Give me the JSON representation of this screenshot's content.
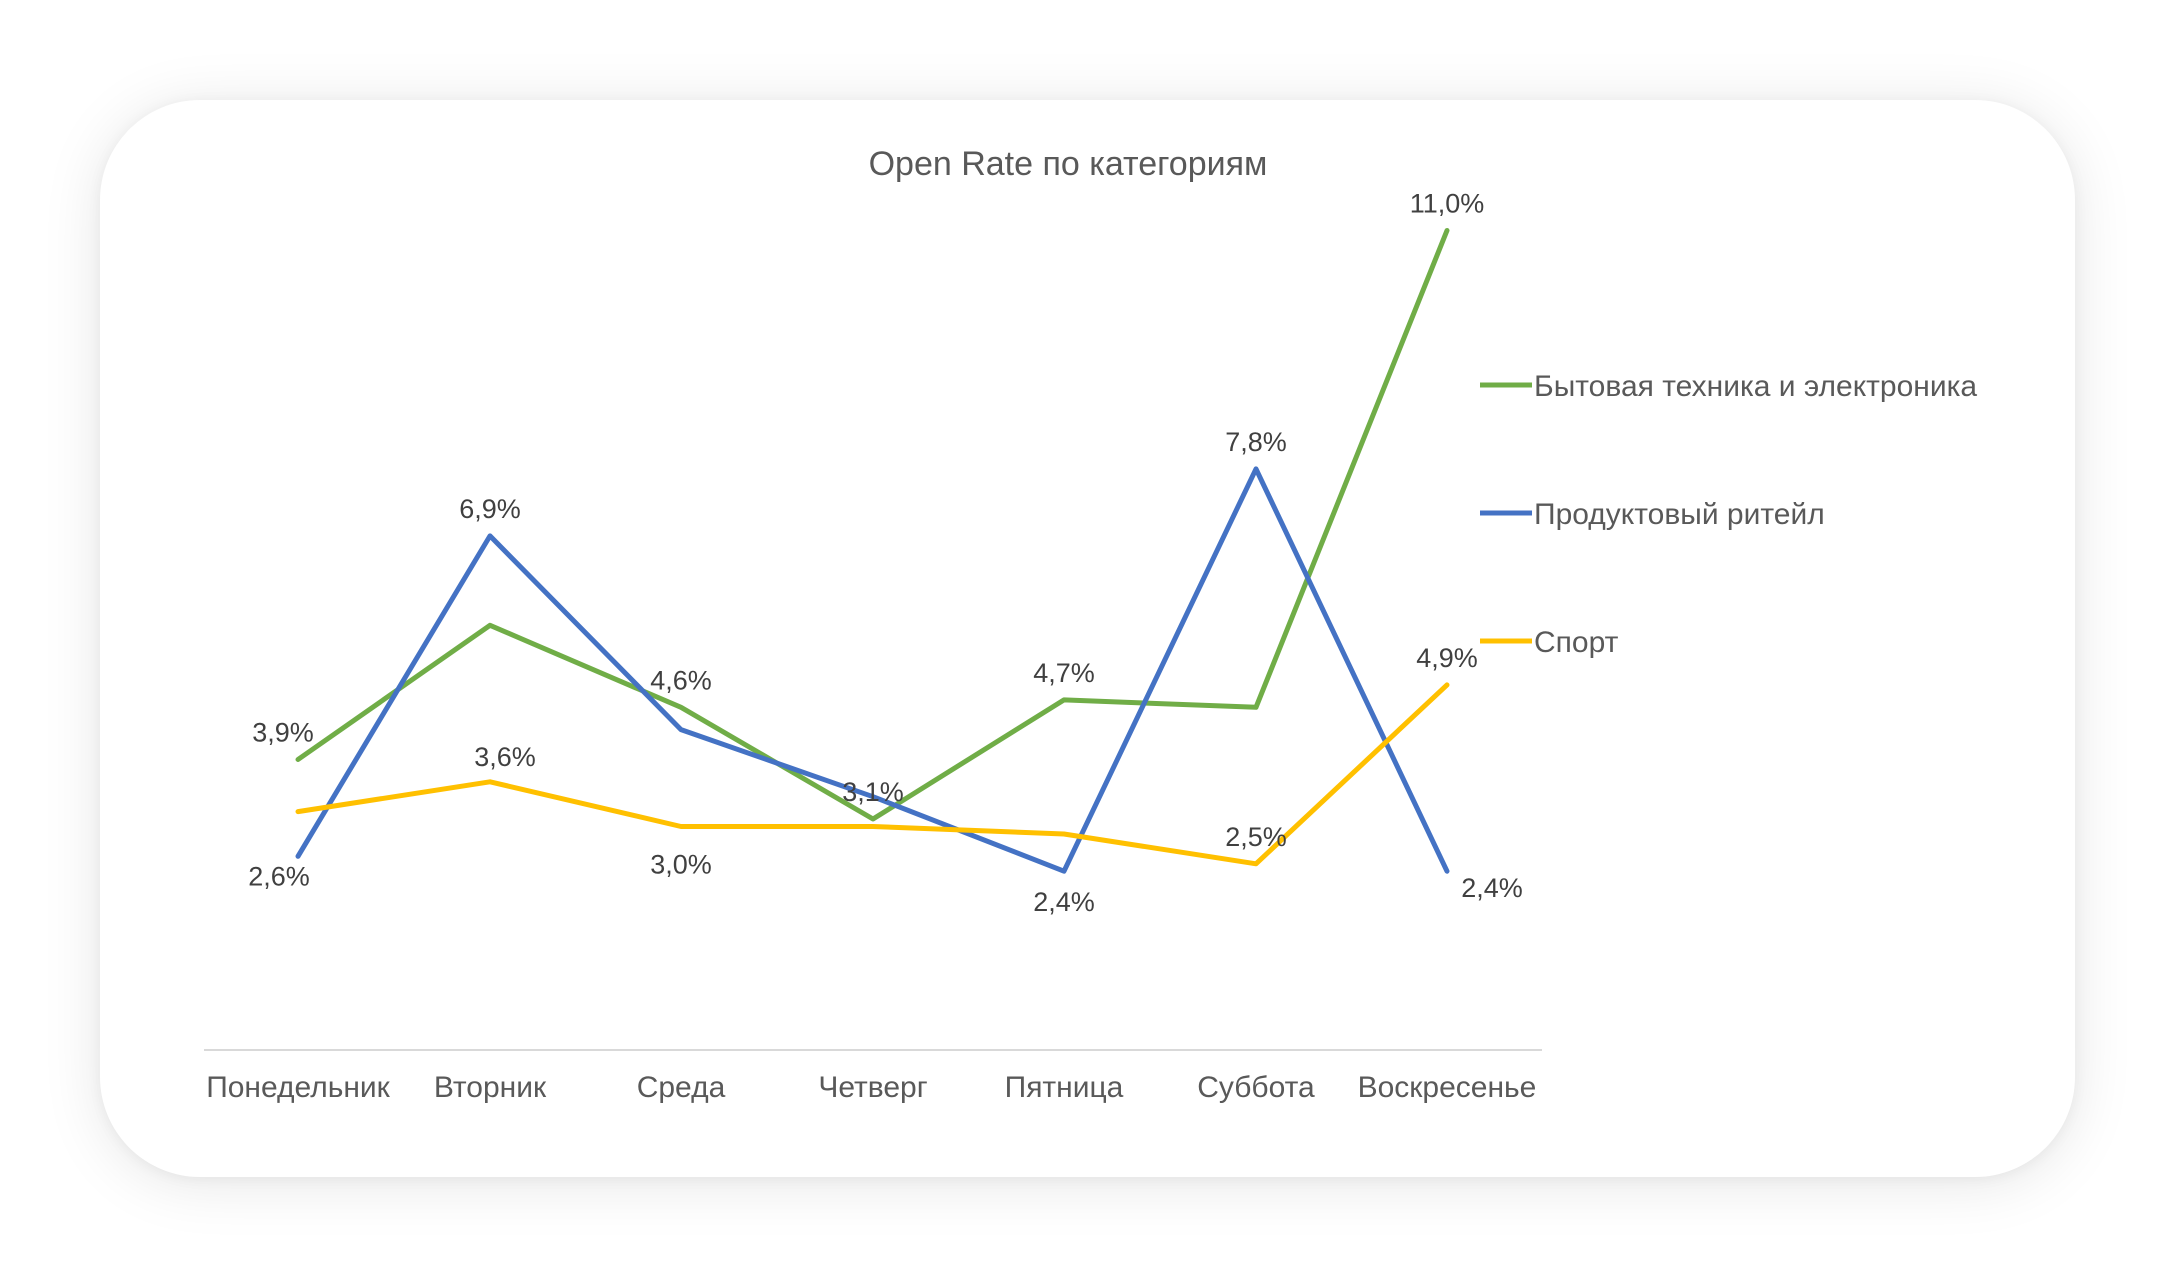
{
  "chart_data": {
    "type": "line",
    "title": "Open Rate по категориям",
    "categories": [
      "Понедельник",
      "Вторник",
      "Среда",
      "Четверг",
      "Пятница",
      "Суббота",
      "Воскресенье"
    ],
    "ylim": [
      0,
      12
    ],
    "grid": false,
    "legend_position": "right",
    "series": [
      {
        "name": "Бытовая техника и электроника",
        "color": "#70AD47",
        "values": [
          3.9,
          5.7,
          4.6,
          3.1,
          4.7,
          4.6,
          11.0
        ],
        "labels": [
          "3,9%",
          "",
          "4,6%",
          "3,1%",
          "4,7%",
          "",
          "11,0%"
        ]
      },
      {
        "name": "Продуктовый ритейл",
        "color": "#4472C4",
        "values": [
          2.6,
          6.9,
          4.3,
          3.4,
          2.4,
          7.8,
          2.4
        ],
        "labels": [
          "2,6%",
          "6,9%",
          "",
          "",
          "2,4%",
          "7,8%",
          "2,4%"
        ]
      },
      {
        "name": "Спорт",
        "color": "#FFC000",
        "values": [
          3.2,
          3.6,
          3.0,
          3.0,
          2.9,
          2.5,
          4.9
        ],
        "labels": [
          "",
          "3,6%",
          "3,0%",
          "",
          "",
          "2,5%",
          "4,9%"
        ]
      }
    ]
  }
}
